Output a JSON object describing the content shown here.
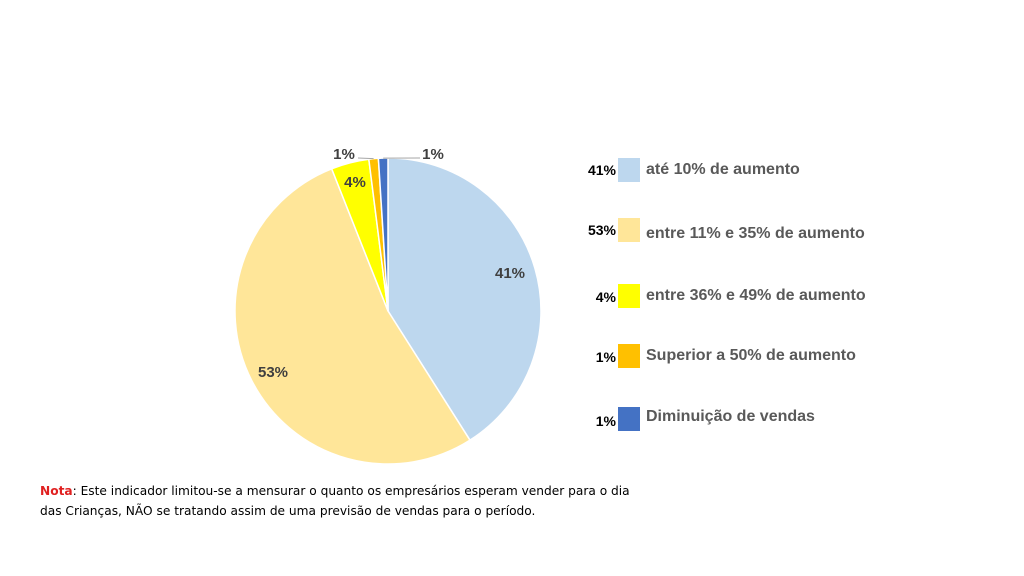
{
  "chart_data": {
    "type": "pie",
    "slices": [
      {
        "label": "até 10% de aumento",
        "value": 41,
        "value_label": "41%",
        "legend_pct": "41%",
        "color": "#BDD7EE"
      },
      {
        "label": "entre 11% e 35% de aumento",
        "value": 53,
        "value_label": "53%",
        "legend_pct": "53%",
        "color": "#FFE699"
      },
      {
        "label": "entre 36% e 49% de aumento",
        "value": 4,
        "value_label": "4%",
        "legend_pct": "4%",
        "color": "#FFFF00"
      },
      {
        "label": "Superior a 50% de aumento",
        "value": 1,
        "value_label": "1%",
        "legend_pct": "1%",
        "color": "#FFC000"
      },
      {
        "label": "Diminuição de vendas",
        "value": 1,
        "value_label": "1%",
        "legend_pct": "1%",
        "color": "#4472C4"
      }
    ],
    "legend_position": "right"
  },
  "note": {
    "label": "Nota",
    "text": ": Este indicador limitou-se a mensurar    o quanto os empresários esperam vender para o dia das Crianças, NÃO se tratando assim de uma previsão de vendas para o período."
  }
}
